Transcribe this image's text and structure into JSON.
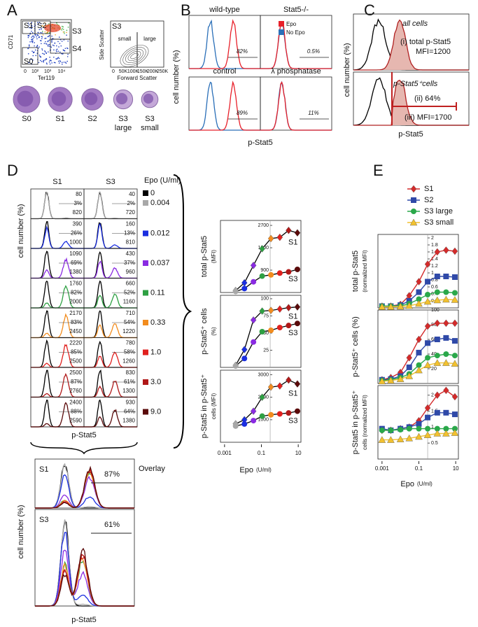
{
  "panel_a": {
    "letter": "A",
    "y_label": "CD71",
    "x_label": "Ter119",
    "x_ticks": [
      "0",
      "10²",
      "10³",
      "10⁴"
    ],
    "gates": [
      "S1",
      "S2",
      "S3",
      "S4",
      "S0"
    ],
    "inset": {
      "title": "S3",
      "small": "small",
      "large": "large",
      "x_label": "Forward Scatter",
      "y_label": "Side Scatter",
      "x_ticks": [
        "0",
        "50K",
        "100K",
        "150K",
        "200K",
        "250K"
      ]
    },
    "cells": [
      {
        "label": "S0"
      },
      {
        "label": "S1"
      },
      {
        "label": "S2"
      },
      {
        "label": "S3",
        "sub": "large"
      },
      {
        "label": "S3",
        "sub": "small"
      }
    ]
  },
  "panel_b": {
    "letter": "B",
    "plots": [
      {
        "title": "wild-type",
        "pct": "82%"
      },
      {
        "title": "Stat5-/-",
        "pct": "0.5%"
      },
      {
        "title": "control",
        "pct": "89%"
      },
      {
        "title": "λ phosphatase",
        "pct": "11%"
      }
    ],
    "legend": [
      {
        "name": "Epo",
        "color": "#e8202a"
      },
      {
        "name": "No Epo",
        "color": "#2a6fb8"
      }
    ],
    "y_label": "cell number (%)",
    "x_label": "p-Stat5"
  },
  "panel_c": {
    "letter": "C",
    "y_label": "cell number (%)",
    "x_label": "p-Stat5",
    "top_label": "all cells",
    "mfi_total": [
      "(i) total p-Stat5",
      "MFI=1200"
    ],
    "pos_label": "p-Stat5⁺cells",
    "pct": "(ii) 64%",
    "mfi_pos": "(iii) MFI=1700"
  },
  "panel_d": {
    "letter": "D",
    "columns": [
      "S1",
      "S3"
    ],
    "legend_title": "Epo (U/ml)",
    "legend": [
      {
        "label": "0",
        "color": "#000000"
      },
      {
        "label": "0.004",
        "color": "#a8a8a8"
      },
      {
        "label": "0.012",
        "color": "#1a2ee0"
      },
      {
        "label": "0.037",
        "color": "#8a2be2"
      },
      {
        "label": "0.11",
        "color": "#2ea043"
      },
      {
        "label": "0.33",
        "color": "#f28c1e"
      },
      {
        "label": "1.0",
        "color": "#e0201e"
      },
      {
        "label": "3.0",
        "color": "#b01818"
      },
      {
        "label": "9.0",
        "color": "#5a0a0a"
      }
    ],
    "rows": [
      {
        "s1": [
          "80",
          "3%",
          "820"
        ],
        "s3": [
          "40",
          "2%",
          "720"
        ]
      },
      {
        "s1": [
          "390",
          "26%",
          "1000"
        ],
        "s3": [
          "160",
          "13%",
          "810"
        ]
      },
      {
        "s1": [
          "1090",
          "69%",
          "1380"
        ],
        "s3": [
          "430",
          "37%",
          "960"
        ]
      },
      {
        "s1": [
          "1760",
          "82%",
          "2000"
        ],
        "s3": [
          "660",
          "52%",
          "1160"
        ]
      },
      {
        "s1": [
          "2170",
          "83%",
          "2450"
        ],
        "s3": [
          "710",
          "54%",
          "1220"
        ]
      },
      {
        "s1": [
          "2220",
          "85%",
          "2500"
        ],
        "s3": [
          "780",
          "58%",
          "1260"
        ]
      },
      {
        "s1": [
          "2500",
          "87%",
          "2760"
        ],
        "s3": [
          "830",
          "61%",
          "1300"
        ]
      },
      {
        "s1": [
          "2400",
          "88%",
          "2590"
        ],
        "s3": [
          "930",
          "64%",
          "1380"
        ]
      }
    ],
    "y_label": "cell number (%)",
    "x_label": "p-Stat5",
    "overlay": {
      "title": "Overlay",
      "plots": [
        {
          "name": "S1",
          "pct": "87%"
        },
        {
          "name": "S3",
          "pct": "61%"
        }
      ],
      "y_label": "cell number (%)",
      "x_label": "p-Stat5"
    },
    "summary": {
      "x_label": "Epo",
      "x_unit": "(U/ml)",
      "xticks": [
        0.001,
        0.1,
        10
      ],
      "xlim": [
        0.0006,
        14
      ],
      "series_labels": [
        "S1",
        "S3"
      ],
      "charts": [
        {
          "y_label": "total p-Stat5",
          "y_unit": "(MFI)",
          "ylim": [
            0,
            2900
          ],
          "yticks": [
            900,
            1800,
            2700
          ]
        },
        {
          "y_label": "p-Stat5⁺ cells",
          "y_unit": "(%)",
          "ylim": [
            0,
            105
          ],
          "yticks": [
            25,
            50,
            75,
            100
          ]
        },
        {
          "y_label": "p-Stat5  in p-Stat5⁺",
          "y_unit": "cells (MFI)",
          "ylim": [
            0,
            3200
          ],
          "yticks": [
            1000,
            2000,
            3000
          ]
        }
      ]
    }
  },
  "panel_e": {
    "letter": "E",
    "x": [
      0.001,
      0.003,
      0.01,
      0.03,
      0.1,
      0.3,
      1,
      3,
      9
    ],
    "xlim": [
      0.0006,
      14
    ],
    "xticks": [
      0.001,
      0.1,
      10
    ],
    "x_label": "Epo",
    "x_unit": "(U/ml)",
    "series": [
      {
        "name": "S1",
        "color": "#d42a2a",
        "marker": "diamond"
      },
      {
        "name": "S2",
        "color": "#2f49a8",
        "marker": "square"
      },
      {
        "name": "S3 large",
        "color": "#2aa84a",
        "marker": "circle"
      },
      {
        "name": "S3 small",
        "color": "#f2c12e",
        "marker": "triangle"
      }
    ],
    "charts": [
      {
        "y_label": "total p-Stat5",
        "y_unit": "(normalized MFI)",
        "ylim": [
          0,
          2.1
        ],
        "yticks": [
          0.2,
          0.4,
          0.6,
          0.8,
          1,
          1.2,
          1.4,
          1.6,
          1.8,
          2
        ],
        "values": [
          [
            0.05,
            0.05,
            0.1,
            0.35,
            0.75,
            1.25,
            1.6,
            1.65,
            1.62
          ],
          [
            0.05,
            0.05,
            0.08,
            0.2,
            0.45,
            0.75,
            0.9,
            0.9,
            0.88
          ],
          [
            0.05,
            0.05,
            0.06,
            0.12,
            0.25,
            0.38,
            0.45,
            0.45,
            0.43
          ],
          [
            0.03,
            0.03,
            0.04,
            0.06,
            0.12,
            0.18,
            0.22,
            0.24,
            0.23
          ]
        ]
      },
      {
        "y_label": "p-Stat5⁺ cells (%)",
        "ylim": [
          0,
          100
        ],
        "yticks": [
          20,
          40,
          60,
          80,
          100
        ],
        "values": [
          [
            5,
            8,
            15,
            35,
            60,
            78,
            82,
            82,
            82
          ],
          [
            5,
            6,
            10,
            22,
            42,
            55,
            60,
            62,
            58
          ],
          [
            4,
            5,
            8,
            13,
            25,
            35,
            38,
            40,
            38
          ],
          [
            3,
            4,
            6,
            10,
            18,
            25,
            28,
            28,
            27
          ]
        ]
      },
      {
        "y_label": "p-Stat5 in p-Stat5⁺",
        "y_unit": "cells (normalized MFI)",
        "ylim": [
          0,
          2.3
        ],
        "yticks": [
          0.5,
          1,
          1.5,
          2
        ],
        "values": [
          [
            0.9,
            0.9,
            0.95,
            1.0,
            1.2,
            1.6,
            2.0,
            2.15,
            1.95
          ],
          [
            0.95,
            0.9,
            0.95,
            1.0,
            1.1,
            1.3,
            1.45,
            1.45,
            1.4
          ],
          [
            0.9,
            0.9,
            0.92,
            0.95,
            0.95,
            0.95,
            0.95,
            0.95,
            0.95
          ],
          [
            0.6,
            0.6,
            0.62,
            0.65,
            0.7,
            0.75,
            0.8,
            0.8,
            0.82
          ]
        ]
      }
    ]
  }
}
